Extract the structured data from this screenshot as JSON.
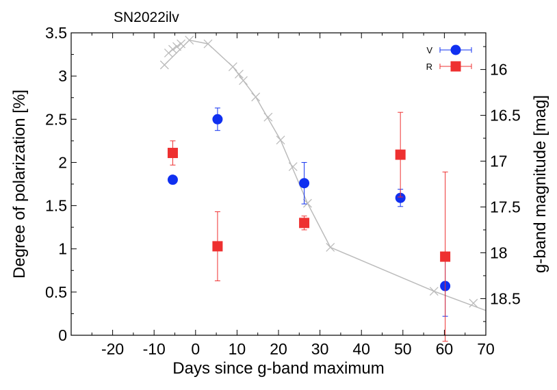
{
  "chart_data": {
    "type": "scatter",
    "title": "SN2022ilv",
    "xlabel": "Days since g-band maximum",
    "ylabel": "Degree of polarization [%]",
    "y2label": "g-band magnitude [mag]",
    "xlim": [
      -30,
      70
    ],
    "ylim": [
      0,
      3.5
    ],
    "y2lim": [
      15.6,
      18.9
    ],
    "x_ticks": [
      -20,
      -10,
      0,
      10,
      20,
      30,
      40,
      50,
      60,
      70
    ],
    "x_tick_labels": [
      "-20",
      "-10",
      "0",
      "10",
      "20",
      "30",
      "40",
      "50",
      "60",
      "70"
    ],
    "y_ticks": [
      0,
      0.5,
      1,
      1.5,
      2,
      2.5,
      3,
      3.5
    ],
    "y_tick_labels": [
      "0",
      "0.5",
      "1",
      "1.5",
      "2",
      "2.5",
      "3",
      "3.5"
    ],
    "y2_ticks": [
      16,
      16.5,
      17,
      17.5,
      18,
      18.5
    ],
    "y2_tick_labels": [
      "16",
      "16.5",
      "17",
      "17.5",
      "18",
      "18.5"
    ],
    "legend_position": "top-right",
    "series": [
      {
        "name": "V",
        "color": "#1030f0",
        "marker": "circle",
        "x": [
          -5.5,
          5.3,
          26.2,
          49.4,
          60.2
        ],
        "y": [
          1.8,
          2.5,
          1.76,
          1.59,
          0.57
        ],
        "err": [
          0.04,
          0.13,
          0.24,
          0.1,
          0.35
        ]
      },
      {
        "name": "R",
        "color": "#ee3030",
        "marker": "square",
        "x": [
          -5.5,
          5.3,
          26.2,
          49.4,
          60.2
        ],
        "y": [
          2.11,
          1.03,
          1.3,
          2.09,
          0.91
        ],
        "err": [
          0.14,
          0.4,
          0.08,
          0.49,
          0.98
        ]
      }
    ],
    "light_curve": {
      "name": "g-band light curve",
      "color": "#bbbbbb",
      "marker": "cross",
      "axis": "right",
      "x": [
        -7.5,
        -6.5,
        -5.5,
        -4.5,
        -3.5,
        -1.5,
        3,
        9,
        10.5,
        11.5,
        14.5,
        17.5,
        20.5,
        23.5,
        27,
        32.5,
        57.5,
        67
      ],
      "y": [
        15.95,
        15.82,
        15.78,
        15.75,
        15.72,
        15.68,
        15.72,
        15.97,
        16.05,
        16.12,
        16.3,
        16.52,
        16.77,
        17.06,
        17.46,
        17.94,
        18.42,
        18.55
      ],
      "line_x": [
        -7.5,
        -1.5,
        3,
        9,
        14.5,
        20.5,
        27,
        32.5,
        57.5,
        70
      ],
      "line_y": [
        15.95,
        15.68,
        15.72,
        15.97,
        16.3,
        16.77,
        17.46,
        17.94,
        18.42,
        18.63
      ]
    }
  }
}
